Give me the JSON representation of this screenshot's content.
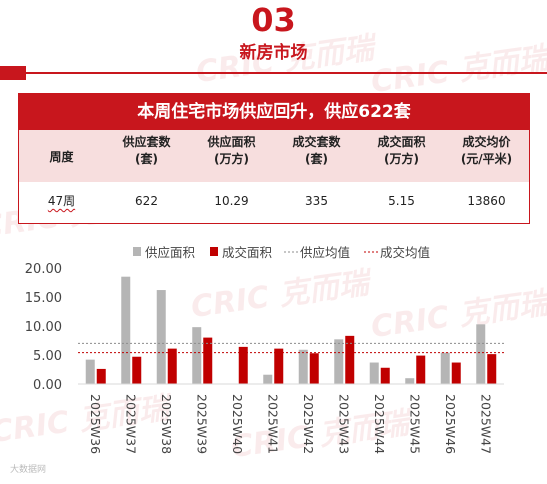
{
  "section": {
    "number": "03",
    "title": "新房市场"
  },
  "watermark": {
    "brand": "CRIC",
    "name": "克而瑞"
  },
  "summary_table": {
    "title": "本周住宅市场供应回升，供应622套",
    "columns": [
      "周度",
      "供应套数\n(套)",
      "供应面积\n(万方)",
      "成交套数\n(套)",
      "成交面积\n(万方)",
      "成交均价\n(元/平米)"
    ],
    "row": [
      "47周",
      "622",
      "10.29",
      "335",
      "5.15",
      "13860"
    ]
  },
  "colors": {
    "accent": "#c8161d",
    "supply_bar": "#b5b5b5",
    "deal_bar": "#c00000",
    "supply_avg": "#8c8c8c",
    "deal_avg": "#c00000"
  },
  "chart_data": {
    "type": "bar",
    "categories": [
      "2025W36",
      "2025W37",
      "2025W38",
      "2025W39",
      "2025W40",
      "2025W41",
      "2025W42",
      "2025W43",
      "2025W44",
      "2025W45",
      "2025W46",
      "2025W47"
    ],
    "series": [
      {
        "name": "供应面积",
        "values": [
          4.2,
          18.5,
          16.2,
          9.8,
          0,
          1.6,
          5.9,
          7.7,
          3.7,
          1.0,
          5.4,
          10.29
        ]
      },
      {
        "name": "成交面积",
        "values": [
          2.6,
          4.7,
          6.1,
          8.0,
          6.4,
          6.1,
          5.3,
          8.3,
          2.8,
          4.9,
          3.7,
          5.15
        ]
      }
    ],
    "lines": [
      {
        "name": "供应均值",
        "value": 7.0
      },
      {
        "name": "成交均值",
        "value": 5.4
      }
    ],
    "ylim": [
      0,
      20
    ],
    "yticks": [
      "0.00",
      "5.00",
      "10.00",
      "15.00",
      "20.00"
    ],
    "legend_position": "top",
    "grid": false
  },
  "footer": {
    "source": "大数据网"
  }
}
